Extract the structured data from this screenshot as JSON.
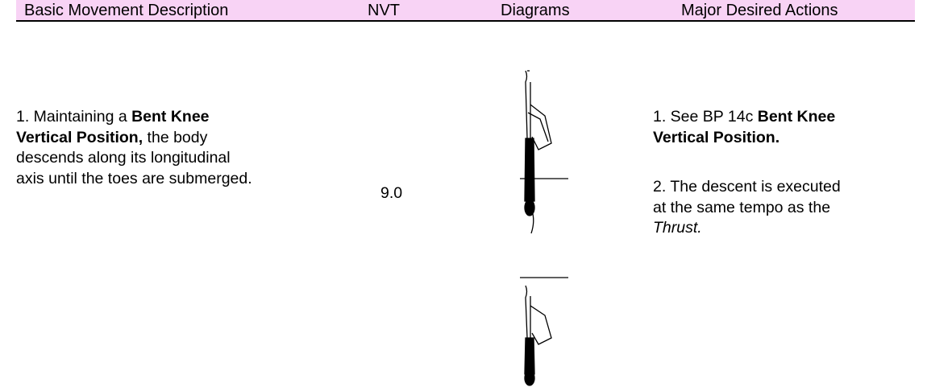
{
  "header": {
    "columns": [
      "Basic Movement Description",
      "NVT",
      "Diagrams",
      "Major Desired Actions"
    ]
  },
  "row": {
    "description": [
      [
        {
          "text": "1. Maintaining a "
        },
        {
          "text": "Bent Knee",
          "bold": true
        }
      ],
      [
        {
          "text": "Vertical Position,",
          "bold": true
        },
        {
          "text": " the body"
        }
      ],
      [
        {
          "text": "descends along its longitudinal"
        }
      ],
      [
        {
          "text": "axis until the toes are submerged."
        }
      ]
    ],
    "nvt": "9.0",
    "actions": [
      [
        [
          {
            "text": "1. See BP 14c "
          },
          {
            "text": "Bent Knee",
            "bold": true
          }
        ],
        [
          {
            "text": "Vertical Position.",
            "bold": true
          }
        ]
      ],
      [
        [
          {
            "text": "2. The descent is executed"
          }
        ],
        [
          {
            "text": "at the same tempo as the"
          }
        ],
        [
          {
            "text": "Thrust.",
            "italic": true
          }
        ]
      ]
    ]
  }
}
